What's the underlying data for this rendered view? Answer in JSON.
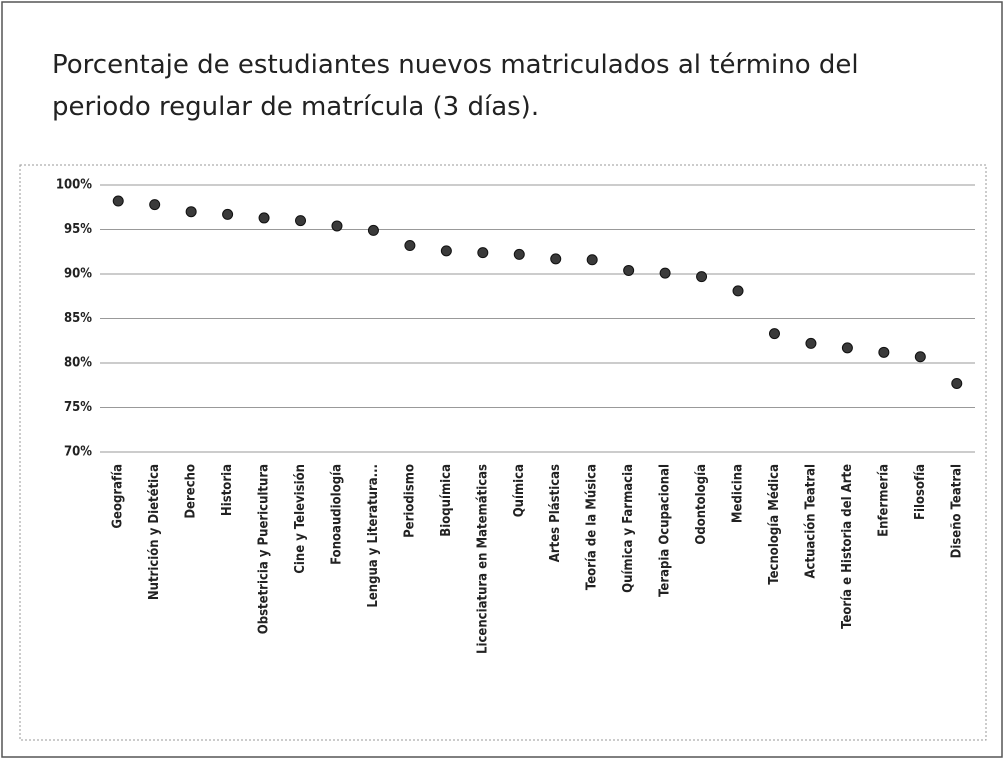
{
  "chart_data": {
    "type": "dot",
    "title": "Porcentaje de estudiantes nuevos matriculados al término del periodo regular de matrícula (3 días).",
    "categories": [
      "Geografía",
      "Nutrición y Dietética",
      "Derecho",
      "Historia",
      "Obstetricia y Puericultura",
      "Cine y Televisión",
      "Fonoaudiología",
      "Lengua y Literatura...",
      "Periodismo",
      "Bioquímica",
      "Licenciatura en Matemáticas",
      "Química",
      "Artes Plásticas",
      "Teoría de la Música",
      "Química y Farmacia",
      "Terapia Ocupacional",
      "Odontología",
      "Medicina",
      "Tecnología Médica",
      "Actuación Teatral",
      "Teoría e Historia del Arte",
      "Enfermería",
      "Filosofía",
      "Diseño Teatral"
    ],
    "values": [
      98.2,
      97.8,
      97.0,
      96.7,
      96.3,
      96.0,
      95.4,
      94.9,
      93.2,
      92.6,
      92.4,
      92.2,
      91.7,
      91.6,
      90.4,
      90.1,
      89.7,
      88.1,
      83.3,
      82.2,
      81.7,
      81.2,
      80.7,
      77.7
    ],
    "color": "#3a3a3a",
    "ylim": [
      70,
      100
    ],
    "yticks": [
      {
        "value": 70,
        "label": "70%"
      },
      {
        "value": 75,
        "label": "75%"
      },
      {
        "value": 80,
        "label": "80%"
      },
      {
        "value": 85,
        "label": "85%"
      },
      {
        "value": 90,
        "label": "90%"
      },
      {
        "value": 95,
        "label": "95%"
      },
      {
        "value": 100,
        "label": "100%"
      }
    ],
    "grid": true
  }
}
